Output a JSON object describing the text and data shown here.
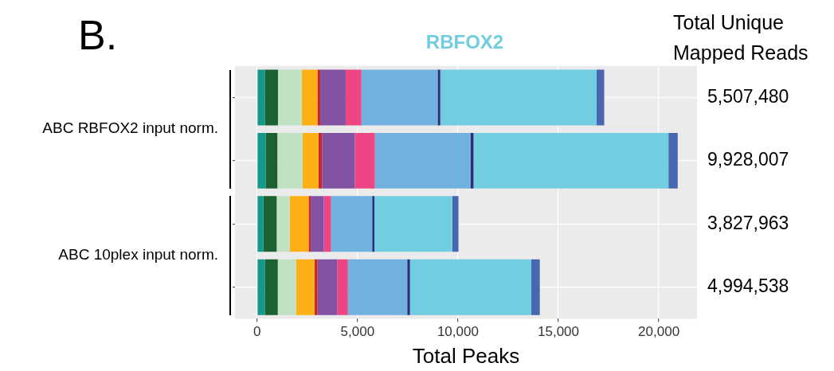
{
  "chart_data": {
    "type": "bar",
    "orientation": "horizontal",
    "stacked": true,
    "title": "RBFOX2",
    "xlabel": "Total Peaks",
    "categories": [
      null,
      null,
      null,
      null
    ],
    "series": [
      {
        "color": "#14998a",
        "values": [
          400,
          440,
          320,
          400
        ]
      },
      {
        "color": "#1c6132",
        "values": [
          640,
          570,
          655,
          630
        ]
      },
      {
        "color": "#c0e2c2",
        "values": [
          1190,
          1250,
          655,
          910
        ]
      },
      {
        "color": "#fdb016",
        "values": [
          775,
          800,
          935,
          920
        ]
      },
      {
        "color": "#c9282a",
        "values": [
          140,
          175,
          105,
          150
        ]
      },
      {
        "color": "#8353a3",
        "values": [
          1265,
          1630,
          655,
          975
        ]
      },
      {
        "color": "#ee4584",
        "values": [
          785,
          1000,
          360,
          535
        ]
      },
      {
        "color": "#70b1e0",
        "values": [
          3795,
          4755,
          2045,
          2955
        ]
      },
      {
        "color": "#2a2e7a",
        "values": [
          130,
          155,
          110,
          135
        ]
      },
      {
        "color": "#71cddf",
        "values": [
          7775,
          9705,
          3875,
          6040
        ]
      },
      {
        "color": "#4767b0",
        "values": [
          385,
          460,
          310,
          425
        ]
      }
    ],
    "xlim": [
      -1100,
      21900
    ],
    "xticks": [
      0,
      {
        "value": 5000,
        "label": "5,000"
      },
      {
        "value": 10000,
        "label": "10,000"
      },
      {
        "value": 15000,
        "label": "15,000"
      },
      {
        "value": 20000,
        "label": "20,000"
      }
    ],
    "grid": true,
    "tick_labels": "x",
    "annotations": [
      "B.",
      "ABC RBFOX2 input norm.",
      "ABC 10plex input norm.",
      "Total Unique",
      "Mapped Reads",
      "5,507,480",
      "9,928,007",
      "3,827,963",
      "4,994,538"
    ]
  }
}
